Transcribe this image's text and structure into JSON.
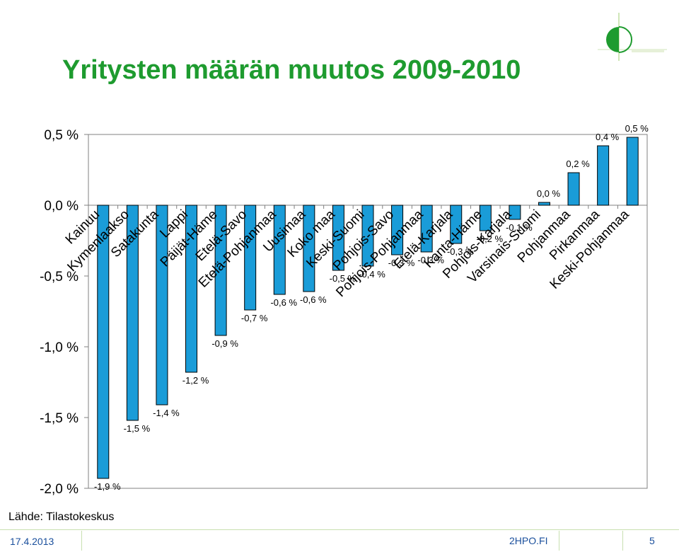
{
  "slide": {
    "title": "Yritysten määrän muutos 2009-2010",
    "source": "Lähde: Tilastokeskus",
    "footer_date": "17.4.2013",
    "footer_site": "2HPO.FI",
    "footer_page": "5",
    "logo_icon": "2hpo-logo-icon"
  },
  "colors": {
    "title": "#1e9b2f",
    "bar_fill": "#1a9cd8",
    "bar_stroke": "#000000",
    "footer_text": "#1a4f9c"
  },
  "chart_data": {
    "type": "bar",
    "title": "",
    "xlabel": "",
    "ylabel": "",
    "ylim": [
      -2.0,
      0.5
    ],
    "yticks": [
      0.5,
      0.0,
      -0.5,
      -1.0,
      -1.5,
      -2.0
    ],
    "ytick_labels": [
      "0,5 %",
      "0,0 %",
      "-0,5 %",
      "-1,0 %",
      "-1,5 %",
      "-2,0 %"
    ],
    "grid": false,
    "legend": "none",
    "categories": [
      "Kainuu",
      "Kymenlaakso",
      "Satakunta",
      "Lappi",
      "Päijät-Häme",
      "Etelä-Savo",
      "Etelä-Pohjanmaa",
      "Uusimaa",
      "Koko maa",
      "Keski-Suomi",
      "Pohjois-Savo",
      "Pohjois-Pohjanmaa",
      "Etelä-Karjala",
      "Kanta-Häme",
      "Pohjois-Karjala",
      "Varsinais-Suomi",
      "Pohjanmaa",
      "Pirkanmaa",
      "Keski-Pohjanmaa"
    ],
    "values": [
      -1.93,
      -1.52,
      -1.41,
      -1.18,
      -0.92,
      -0.74,
      -0.63,
      -0.61,
      -0.46,
      -0.43,
      -0.35,
      -0.33,
      -0.27,
      -0.18,
      -0.1,
      0.02,
      0.23,
      0.42,
      0.48
    ],
    "data_labels": [
      "-1,9 %",
      "-1,5 %",
      "-1,4 %",
      "-1,2 %",
      "-0,9 %",
      "-0,7 %",
      "-0,6 %",
      "-0,6 %",
      "-0,5 %",
      "-0,4 %",
      "-0,3 %",
      "-0,3 %",
      "-0,3 %",
      "-0,2 %",
      "-0,1 %",
      "0,0 %",
      "0,2 %",
      "0,4 %",
      "0,5 %"
    ]
  }
}
